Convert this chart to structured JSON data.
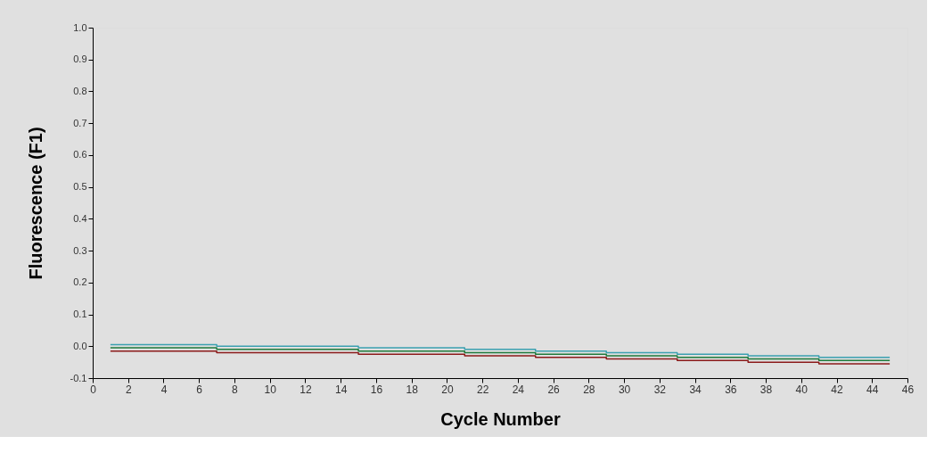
{
  "chart_data": {
    "type": "step",
    "xlabel": "Cycle Number",
    "ylabel": "Fluorescence (F1)",
    "xlim": [
      0,
      46
    ],
    "xticks": [
      0,
      2,
      4,
      6,
      8,
      10,
      12,
      14,
      16,
      18,
      20,
      22,
      24,
      26,
      28,
      30,
      32,
      34,
      36,
      38,
      40,
      42,
      44,
      46
    ],
    "ylim": [
      -0.1,
      1.0
    ],
    "yticks": [
      {
        "value": -0.1,
        "label": "-0.1"
      },
      {
        "value": 0,
        "label": "0.0"
      },
      0.1,
      0.2,
      0.3,
      0.4,
      0.5,
      0.6,
      0.7,
      0.8,
      0.9,
      {
        "value": 1.0,
        "label": "1.0"
      }
    ],
    "x": [
      1,
      3,
      5,
      7,
      9,
      11,
      13,
      15,
      17,
      19,
      21,
      23,
      25,
      27,
      29,
      31,
      33,
      35,
      37,
      39,
      41,
      43,
      45
    ],
    "series": [
      {
        "color": "#8b1a1a",
        "values": [
          -0.015,
          -0.015,
          -0.015,
          -0.02,
          -0.02,
          -0.02,
          -0.02,
          -0.025,
          -0.025,
          -0.025,
          -0.03,
          -0.03,
          -0.035,
          -0.035,
          -0.04,
          -0.04,
          -0.045,
          -0.045,
          -0.05,
          -0.05,
          -0.055,
          -0.055,
          -0.055
        ]
      },
      {
        "color": "#1e7a3c",
        "values": [
          -0.005,
          -0.005,
          -0.005,
          -0.01,
          -0.01,
          -0.01,
          -0.01,
          -0.015,
          -0.015,
          -0.015,
          -0.02,
          -0.02,
          -0.025,
          -0.025,
          -0.03,
          -0.03,
          -0.035,
          -0.035,
          -0.04,
          -0.04,
          -0.045,
          -0.045,
          -0.045
        ]
      },
      {
        "color": "#3aa0b0",
        "values": [
          0.005,
          0.005,
          0.005,
          0.0,
          0.0,
          0.0,
          0.0,
          -0.005,
          -0.005,
          -0.005,
          -0.01,
          -0.01,
          -0.015,
          -0.015,
          -0.02,
          -0.02,
          -0.025,
          -0.025,
          -0.03,
          -0.03,
          -0.035,
          -0.035,
          -0.035
        ]
      }
    ]
  }
}
